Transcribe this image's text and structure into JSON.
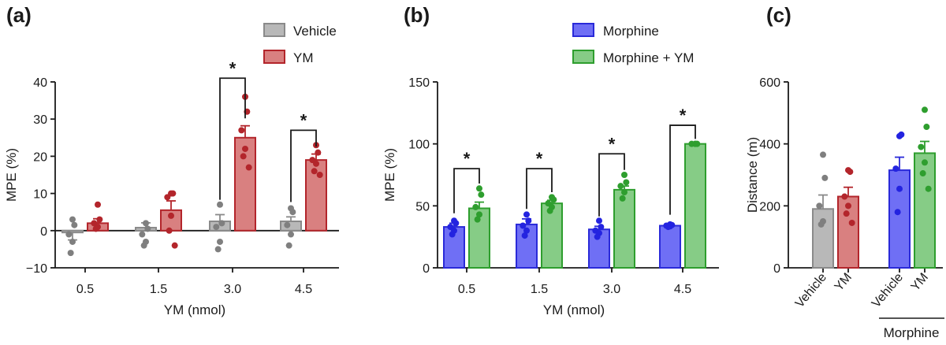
{
  "colors": {
    "vehicle": "#b8b8b8",
    "vehicle_edge": "#8a8a8a",
    "vehicle_dot": "#7f7f7f",
    "ym": "#d98080",
    "ym_edge": "#b3252b",
    "ym_dot": "#b3252b",
    "morphine": "#6f6ff5",
    "morphine_edge": "#2a2ad9",
    "morphine_dot": "#2323e0",
    "combo": "#86cc86",
    "combo_edge": "#2e9e2e",
    "combo_dot": "#2e9e2e"
  },
  "chart_data": [
    {
      "panel": "(a)",
      "type": "bar",
      "xlabel": "YM (nmol)",
      "ylabel": "MPE (%)",
      "ylim": [
        -10,
        40
      ],
      "yticks": [
        "−10",
        "0",
        "10",
        "20",
        "30",
        "40"
      ],
      "ytick_values": [
        -10,
        0,
        10,
        20,
        30,
        40
      ],
      "categories": [
        "0.5",
        "1.5",
        "3.0",
        "4.5"
      ],
      "legend": [
        "Vehicle",
        "YM"
      ],
      "series": [
        {
          "name": "Vehicle",
          "color_key": "vehicle",
          "values": [
            -0.5,
            0.8,
            2.5,
            2.5
          ],
          "errors": [
            2.0,
            1.3,
            1.8,
            1.2
          ],
          "points": [
            [
              3,
              1.5,
              -1,
              -3,
              -6
            ],
            [
              2,
              0.5,
              -1,
              -3,
              -4
            ],
            [
              7,
              2,
              1,
              -3,
              -5
            ],
            [
              6,
              5,
              1.5,
              -1,
              -4
            ]
          ]
        },
        {
          "name": "YM",
          "color_key": "ym",
          "values": [
            2.0,
            5.5,
            25.0,
            19.0
          ],
          "errors": [
            1.2,
            2.5,
            3.2,
            1.6
          ],
          "points": [
            [
              7,
              3,
              2,
              1,
              0.5
            ],
            [
              10,
              10,
              9,
              4,
              0,
              -4
            ],
            [
              36,
              32,
              27,
              22,
              20,
              17
            ],
            [
              23,
              21,
              19,
              18,
              16,
              15
            ]
          ]
        }
      ],
      "significance": [
        {
          "category": "3.0",
          "label": "*",
          "bracket_y": 41
        },
        {
          "category": "4.5",
          "label": "*",
          "bracket_y": 27
        }
      ]
    },
    {
      "panel": "(b)",
      "type": "bar",
      "xlabel": "YM (nmol)",
      "ylabel": "MPE (%)",
      "ylim": [
        0,
        150
      ],
      "yticks": [
        "0",
        "50",
        "100",
        "150"
      ],
      "ytick_values": [
        0,
        50,
        100,
        150
      ],
      "categories": [
        "0.5",
        "1.5",
        "3.0",
        "4.5"
      ],
      "legend": [
        "Morphine",
        "Morphine + YM"
      ],
      "series": [
        {
          "name": "Morphine",
          "color_key": "morphine",
          "values": [
            33,
            35,
            31,
            34
          ],
          "errors": [
            3,
            4.5,
            2.5,
            0.8
          ],
          "points": [
            [
              38,
              36,
              33,
              30,
              27
            ],
            [
              43,
              38,
              34,
              30,
              26
            ],
            [
              38,
              33,
              30,
              28,
              25
            ],
            [
              35,
              34.5,
              34,
              33.5,
              33
            ]
          ]
        },
        {
          "name": "Morphine + YM",
          "color_key": "combo",
          "values": [
            48,
            52,
            63,
            100
          ],
          "errors": [
            5,
            2.5,
            3,
            0
          ],
          "points": [
            [
              64,
              59,
              49,
              43,
              39
            ],
            [
              57,
              55,
              52,
              49,
              46
            ],
            [
              75,
              69,
              66,
              61,
              56
            ],
            [
              100,
              100,
              100,
              100
            ]
          ]
        }
      ],
      "significance": [
        {
          "category": "0.5",
          "label": "*",
          "bracket_y": 80
        },
        {
          "category": "1.5",
          "label": "*",
          "bracket_y": 80
        },
        {
          "category": "3.0",
          "label": "*",
          "bracket_y": 92
        },
        {
          "category": "4.5",
          "label": "*",
          "bracket_y": 115
        }
      ]
    },
    {
      "panel": "(c)",
      "type": "bar",
      "ylabel": "Distance (m)",
      "ylim": [
        0,
        600
      ],
      "yticks": [
        "0",
        "200",
        "400",
        "600"
      ],
      "ytick_values": [
        0,
        200,
        400,
        600
      ],
      "categories": [
        "Vehicle",
        "YM",
        "Vehicle",
        "YM"
      ],
      "group_label": "Morphine",
      "bars": [
        {
          "label": "Vehicle",
          "color_key": "vehicle",
          "value": 190,
          "error": 45,
          "points": [
            365,
            290,
            200,
            150,
            140
          ]
        },
        {
          "label": "YM",
          "color_key": "ym",
          "value": 230,
          "error": 30,
          "points": [
            315,
            310,
            230,
            200,
            175,
            145
          ]
        },
        {
          "label": "Vehicle",
          "color_key": "morphine",
          "value": 315,
          "error": 42,
          "points": [
            425,
            430,
            320,
            255,
            180
          ]
        },
        {
          "label": "YM",
          "color_key": "combo",
          "value": 370,
          "error": 38,
          "points": [
            510,
            455,
            390,
            340,
            305,
            255
          ]
        }
      ]
    }
  ]
}
